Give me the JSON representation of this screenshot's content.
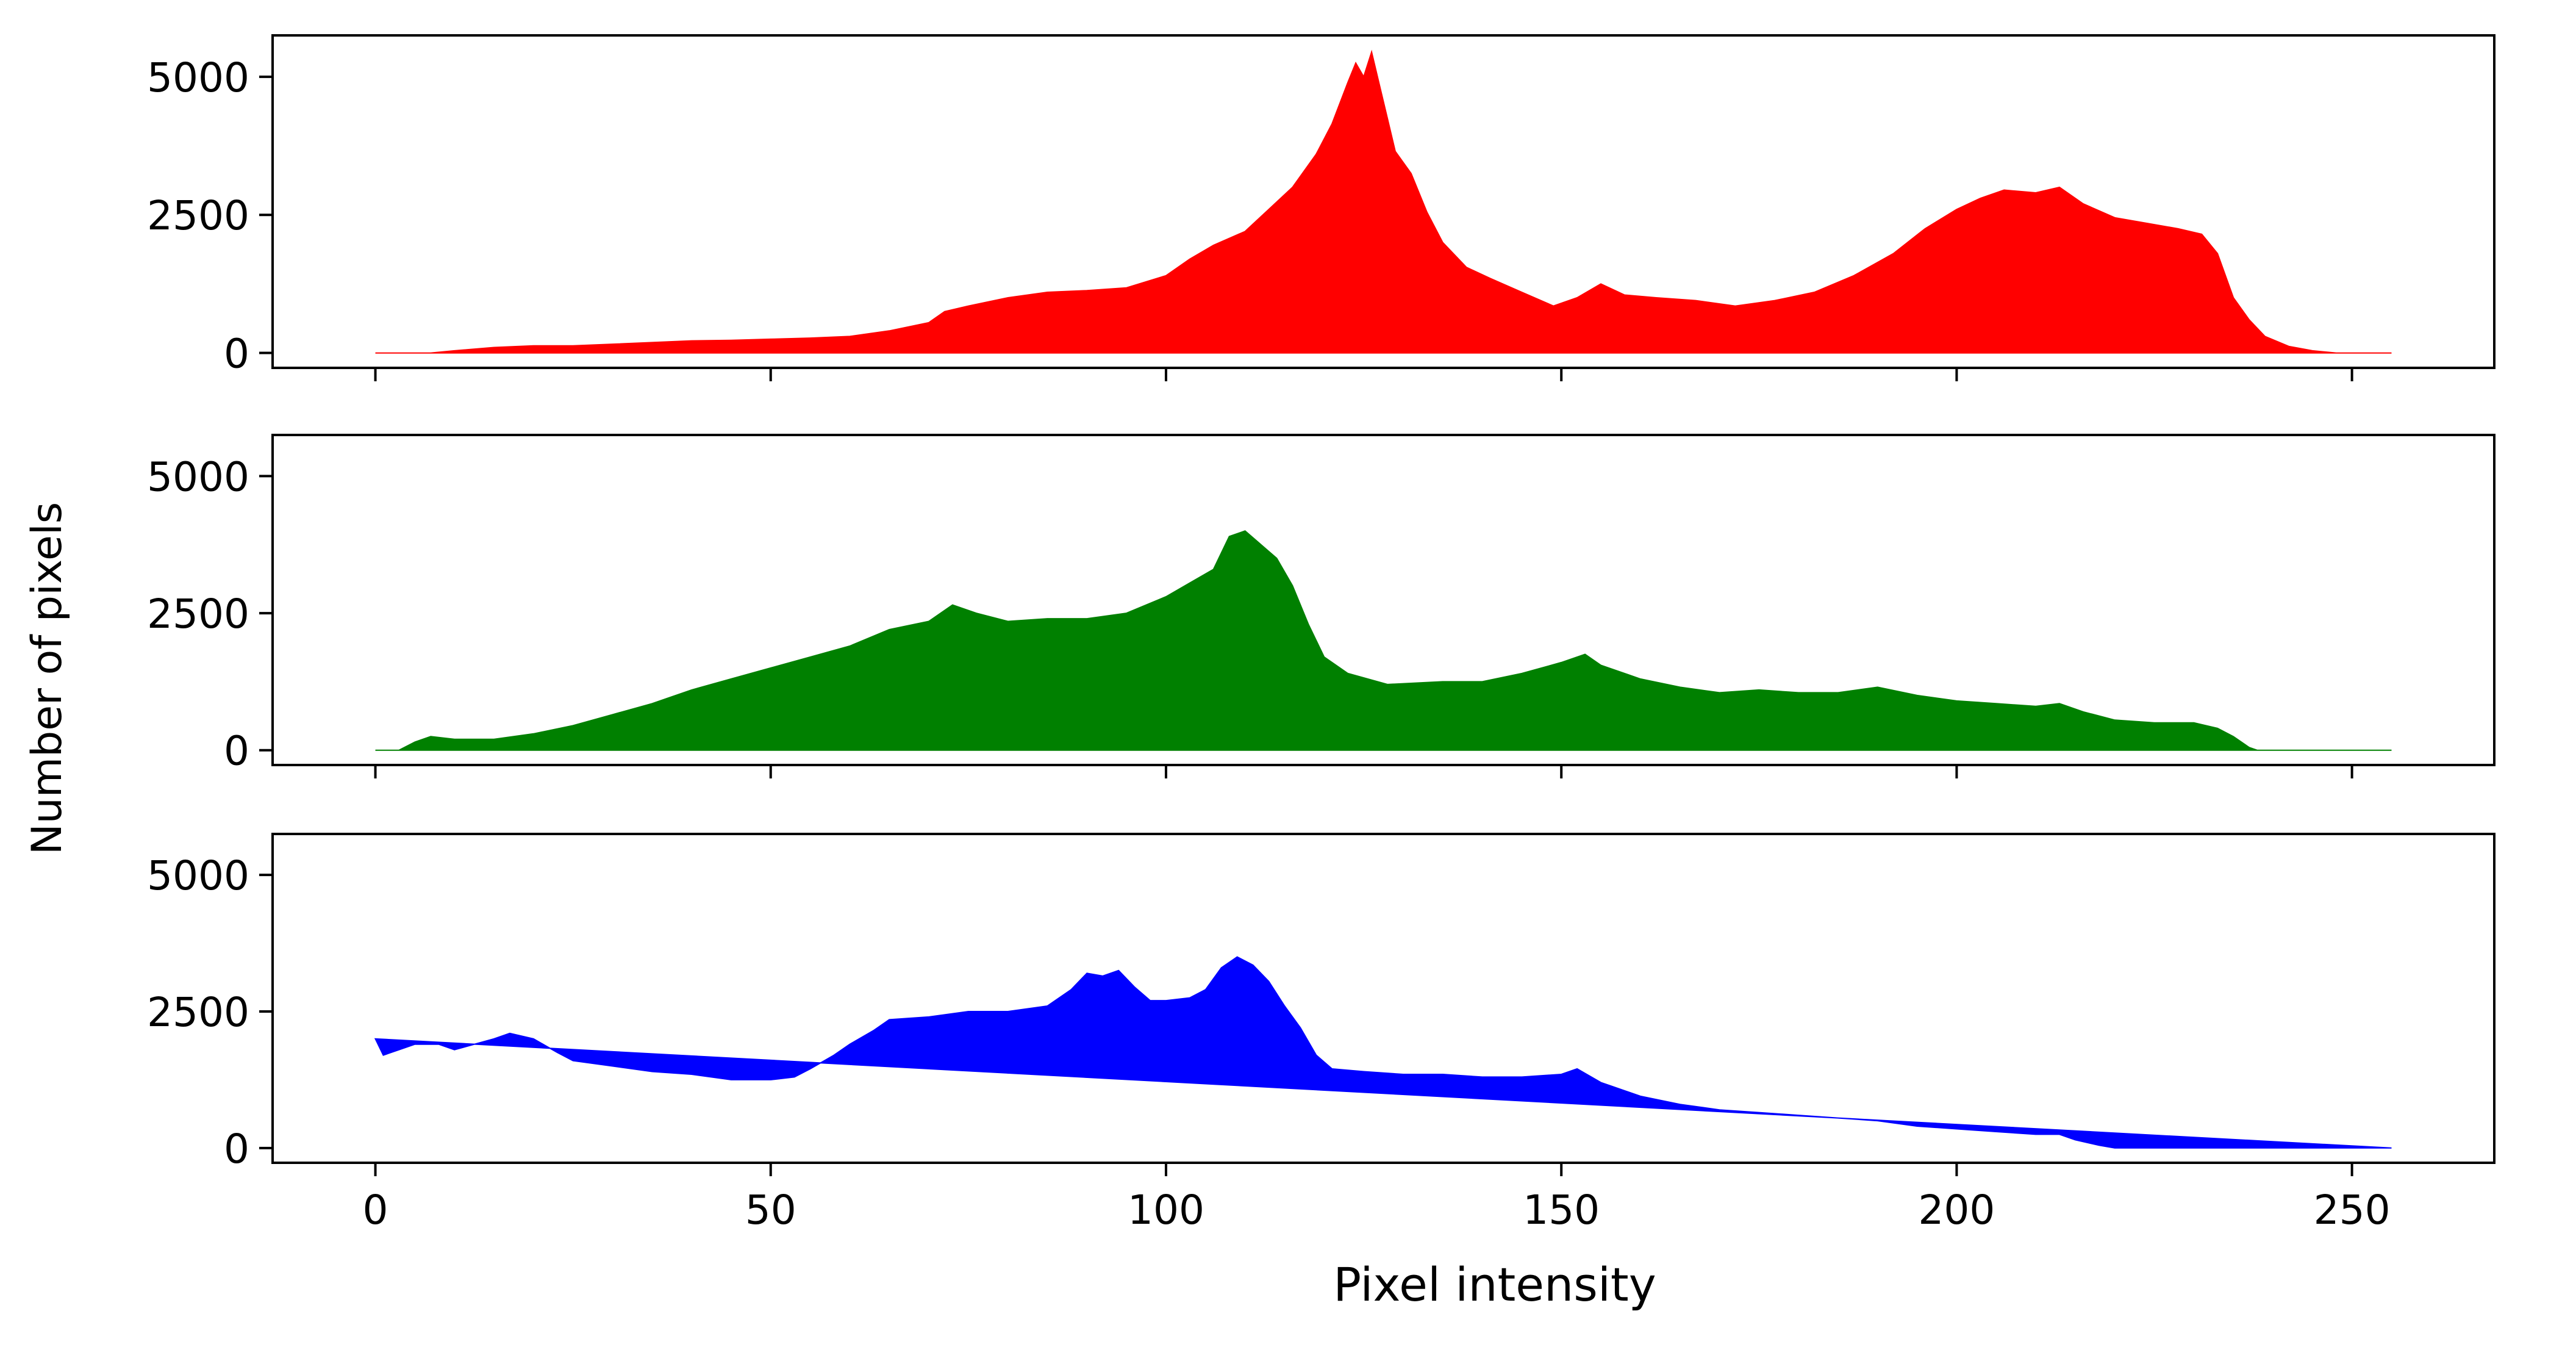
{
  "chart_data": {
    "type": "area",
    "xlabel": "Pixel intensity",
    "ylabel": "Number of pixels",
    "xlim": [
      -13,
      268
    ],
    "ylim": [
      -270,
      5750
    ],
    "xticks": [
      0,
      50,
      100,
      150,
      200,
      250
    ],
    "xtick_labels": [
      "0",
      "50",
      "100",
      "150",
      "200",
      "250"
    ],
    "yticks": [
      0,
      2500,
      5000
    ],
    "ytick_labels": [
      "0",
      "2500",
      "5000"
    ],
    "shared_x": true,
    "grid": false,
    "legend": "none",
    "panels": [
      {
        "name": "",
        "color": "#ff0000",
        "points": [
          [
            0,
            0
          ],
          [
            7,
            0
          ],
          [
            10,
            40
          ],
          [
            15,
            100
          ],
          [
            20,
            130
          ],
          [
            25,
            130
          ],
          [
            30,
            160
          ],
          [
            35,
            190
          ],
          [
            40,
            220
          ],
          [
            45,
            230
          ],
          [
            50,
            250
          ],
          [
            55,
            270
          ],
          [
            60,
            300
          ],
          [
            65,
            400
          ],
          [
            70,
            550
          ],
          [
            72,
            750
          ],
          [
            75,
            850
          ],
          [
            80,
            1000
          ],
          [
            85,
            1100
          ],
          [
            90,
            1130
          ],
          [
            95,
            1180
          ],
          [
            100,
            1400
          ],
          [
            103,
            1700
          ],
          [
            106,
            1950
          ],
          [
            110,
            2200
          ],
          [
            113,
            2600
          ],
          [
            116,
            3000
          ],
          [
            119,
            3600
          ],
          [
            121,
            4150
          ],
          [
            123,
            4900
          ],
          [
            124,
            5250
          ],
          [
            125,
            5000
          ],
          [
            126,
            5450
          ],
          [
            127,
            4850
          ],
          [
            128,
            4250
          ],
          [
            129,
            3650
          ],
          [
            131,
            3250
          ],
          [
            133,
            2550
          ],
          [
            135,
            2000
          ],
          [
            138,
            1550
          ],
          [
            141,
            1350
          ],
          [
            145,
            1100
          ],
          [
            149,
            850
          ],
          [
            152,
            1000
          ],
          [
            155,
            1250
          ],
          [
            158,
            1050
          ],
          [
            162,
            1000
          ],
          [
            167,
            950
          ],
          [
            172,
            850
          ],
          [
            177,
            950
          ],
          [
            182,
            1100
          ],
          [
            187,
            1400
          ],
          [
            192,
            1800
          ],
          [
            196,
            2250
          ],
          [
            200,
            2600
          ],
          [
            203,
            2800
          ],
          [
            206,
            2950
          ],
          [
            210,
            2900
          ],
          [
            213,
            3000
          ],
          [
            216,
            2700
          ],
          [
            220,
            2450
          ],
          [
            224,
            2350
          ],
          [
            228,
            2250
          ],
          [
            231,
            2150
          ],
          [
            233,
            1800
          ],
          [
            235,
            1000
          ],
          [
            237,
            600
          ],
          [
            239,
            300
          ],
          [
            242,
            120
          ],
          [
            245,
            40
          ],
          [
            248,
            0
          ],
          [
            255,
            0
          ]
        ]
      },
      {
        "name": "",
        "color": "#008000",
        "points": [
          [
            0,
            0
          ],
          [
            3,
            0
          ],
          [
            5,
            150
          ],
          [
            7,
            250
          ],
          [
            10,
            200
          ],
          [
            15,
            200
          ],
          [
            20,
            300
          ],
          [
            25,
            450
          ],
          [
            30,
            650
          ],
          [
            35,
            850
          ],
          [
            40,
            1100
          ],
          [
            45,
            1300
          ],
          [
            50,
            1500
          ],
          [
            55,
            1700
          ],
          [
            60,
            1900
          ],
          [
            65,
            2200
          ],
          [
            70,
            2350
          ],
          [
            73,
            2650
          ],
          [
            76,
            2500
          ],
          [
            80,
            2350
          ],
          [
            85,
            2400
          ],
          [
            90,
            2400
          ],
          [
            95,
            2500
          ],
          [
            100,
            2800
          ],
          [
            103,
            3050
          ],
          [
            106,
            3300
          ],
          [
            108,
            3900
          ],
          [
            110,
            4000
          ],
          [
            112,
            3750
          ],
          [
            114,
            3500
          ],
          [
            116,
            3000
          ],
          [
            118,
            2300
          ],
          [
            120,
            1700
          ],
          [
            123,
            1400
          ],
          [
            128,
            1200
          ],
          [
            135,
            1250
          ],
          [
            140,
            1250
          ],
          [
            145,
            1400
          ],
          [
            150,
            1600
          ],
          [
            153,
            1750
          ],
          [
            155,
            1550
          ],
          [
            160,
            1300
          ],
          [
            165,
            1150
          ],
          [
            170,
            1050
          ],
          [
            175,
            1100
          ],
          [
            180,
            1050
          ],
          [
            185,
            1050
          ],
          [
            190,
            1150
          ],
          [
            195,
            1000
          ],
          [
            200,
            900
          ],
          [
            205,
            850
          ],
          [
            210,
            800
          ],
          [
            213,
            850
          ],
          [
            216,
            700
          ],
          [
            220,
            550
          ],
          [
            225,
            500
          ],
          [
            230,
            500
          ],
          [
            233,
            400
          ],
          [
            235,
            250
          ],
          [
            237,
            50
          ],
          [
            238,
            0
          ],
          [
            255,
            0
          ]
        ]
      },
      {
        "name": "",
        "color": "#0000ff",
        "points": [
          [
            0,
            2000
          ],
          [
            1,
            1700
          ],
          [
            3,
            1800
          ],
          [
            5,
            1900
          ],
          [
            8,
            1900
          ],
          [
            10,
            1800
          ],
          [
            15,
            2000
          ],
          [
            17,
            2100
          ],
          [
            20,
            2000
          ],
          [
            23,
            1750
          ],
          [
            25,
            1600
          ],
          [
            30,
            1500
          ],
          [
            35,
            1400
          ],
          [
            40,
            1350
          ],
          [
            45,
            1250
          ],
          [
            50,
            1250
          ],
          [
            53,
            1300
          ],
          [
            55,
            1450
          ],
          [
            58,
            1700
          ],
          [
            60,
            1900
          ],
          [
            63,
            2150
          ],
          [
            65,
            2350
          ],
          [
            70,
            2400
          ],
          [
            75,
            2500
          ],
          [
            80,
            2500
          ],
          [
            85,
            2600
          ],
          [
            88,
            2900
          ],
          [
            90,
            3200
          ],
          [
            92,
            3150
          ],
          [
            94,
            3250
          ],
          [
            96,
            2950
          ],
          [
            98,
            2700
          ],
          [
            100,
            2700
          ],
          [
            103,
            2750
          ],
          [
            105,
            2900
          ],
          [
            107,
            3300
          ],
          [
            109,
            3500
          ],
          [
            111,
            3350
          ],
          [
            113,
            3050
          ],
          [
            115,
            2600
          ],
          [
            117,
            2200
          ],
          [
            119,
            1700
          ],
          [
            121,
            1450
          ],
          [
            125,
            1400
          ],
          [
            130,
            1350
          ],
          [
            135,
            1350
          ],
          [
            140,
            1300
          ],
          [
            145,
            1300
          ],
          [
            150,
            1350
          ],
          [
            152,
            1450
          ],
          [
            155,
            1200
          ],
          [
            160,
            950
          ],
          [
            165,
            800
          ],
          [
            170,
            700
          ],
          [
            175,
            650
          ],
          [
            180,
            600
          ],
          [
            185,
            550
          ],
          [
            190,
            500
          ],
          [
            195,
            400
          ],
          [
            200,
            350
          ],
          [
            205,
            300
          ],
          [
            210,
            250
          ],
          [
            213,
            250
          ],
          [
            215,
            150
          ],
          [
            218,
            50
          ],
          [
            220,
            0
          ],
          [
            230,
            0
          ],
          [
            240,
            0
          ],
          [
            255,
            0
          ]
        ]
      }
    ]
  }
}
